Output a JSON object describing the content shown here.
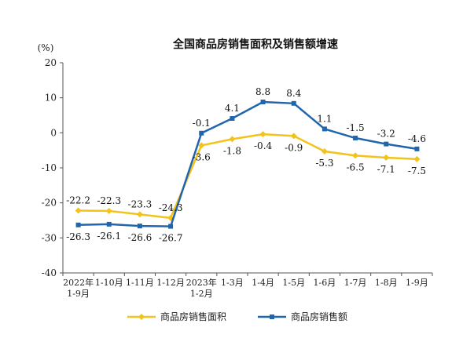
{
  "chart_data": {
    "type": "line",
    "title": "全国商品房销售面积及销售额增速",
    "ylabel": "(%)",
    "xlabel": "",
    "ylim": [
      -40,
      20
    ],
    "yticks": [
      20,
      10,
      0,
      -10,
      -20,
      -30,
      -40
    ],
    "grid": false,
    "legend_position": "bottom-center",
    "categories": [
      [
        "2022年",
        "1-9月"
      ],
      [
        "1-10月"
      ],
      [
        "1-11月"
      ],
      [
        "1-12月"
      ],
      [
        "2023年",
        "1-2月"
      ],
      [
        "1-3月"
      ],
      [
        "1-4月"
      ],
      [
        "1-5月"
      ],
      [
        "1-6月"
      ],
      [
        "1-7月"
      ],
      [
        "1-8月"
      ],
      [
        "1-9月"
      ]
    ],
    "series": [
      {
        "name": "商品房销售面积",
        "color": "#f2c31a",
        "marker": "diamond",
        "label_position": [
          "above",
          "above",
          "above",
          "above",
          "below",
          "below",
          "below",
          "below",
          "below",
          "below",
          "below",
          "below"
        ],
        "values": [
          -22.2,
          -22.3,
          -23.3,
          -24.3,
          -3.6,
          -1.8,
          -0.4,
          -0.9,
          -5.3,
          -6.5,
          -7.1,
          -7.5
        ]
      },
      {
        "name": "商品房销售额",
        "color": "#2166ac",
        "marker": "square",
        "label_position": [
          "below",
          "below",
          "below",
          "below",
          "above",
          "above",
          "above",
          "above",
          "above",
          "above",
          "above",
          "above"
        ],
        "values": [
          -26.3,
          -26.1,
          -26.6,
          -26.7,
          -0.1,
          4.1,
          8.8,
          8.4,
          1.1,
          -1.5,
          -3.2,
          -4.6
        ]
      }
    ]
  }
}
